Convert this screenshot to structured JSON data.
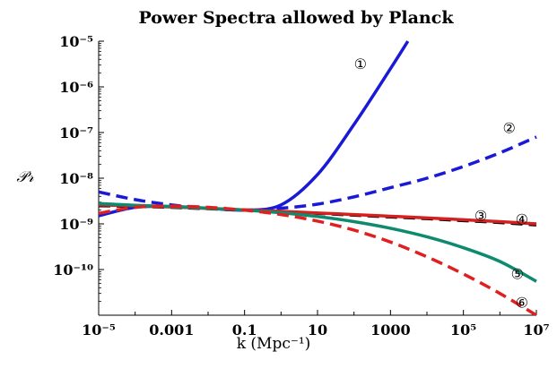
{
  "chart_data": {
    "type": "line",
    "title": "Power Spectra allowed by Planck",
    "xlabel": "k (Mpc⁻¹)",
    "ylabel": "𝒫𝓇",
    "x_scale": "log",
    "y_scale": "log",
    "xlim": [
      1e-05,
      10000000.0
    ],
    "ylim": [
      1e-11,
      1e-05
    ],
    "x_ticks": [
      {
        "value": 1e-05,
        "label": "10⁻⁵"
      },
      {
        "value": 0.001,
        "label": "0.001"
      },
      {
        "value": 0.1,
        "label": "0.1"
      },
      {
        "value": 10,
        "label": "10"
      },
      {
        "value": 1000,
        "label": "1000"
      },
      {
        "value": 100000.0,
        "label": "10⁵"
      },
      {
        "value": 10000000.0,
        "label": "10⁷"
      }
    ],
    "y_ticks": [
      {
        "value": 1e-10,
        "label": "10⁻¹⁰"
      },
      {
        "value": 1e-09,
        "label": "10⁻⁹"
      },
      {
        "value": 1e-08,
        "label": "10⁻⁸"
      },
      {
        "value": 1e-07,
        "label": "10⁻⁷"
      },
      {
        "value": 1e-06,
        "label": "10⁻⁶"
      },
      {
        "value": 1e-05,
        "label": "10⁻⁵"
      }
    ],
    "grid": false,
    "legend": "none",
    "series": [
      {
        "label": "①",
        "color": "#1a1ad6",
        "dash": "solid",
        "x": [
          1e-05,
          0.0001,
          0.001,
          0.01,
          0.1,
          1,
          10,
          100,
          1000,
          3000
        ],
        "y": [
          1.5e-09,
          2.3e-09,
          2.4e-09,
          2.2e-09,
          2e-09,
          2.6e-09,
          1.2e-08,
          1.5e-07,
          2.5e-06,
          1e-05
        ]
      },
      {
        "label": "②",
        "color": "#1a1ad6",
        "dash": "dashed",
        "x": [
          1e-05,
          0.0001,
          0.001,
          0.01,
          0.1,
          1,
          10,
          100,
          1000,
          10000.0,
          100000.0,
          1000000.0,
          10000000.0
        ],
        "y": [
          5e-09,
          3.4e-09,
          2.6e-09,
          2.2e-09,
          2e-09,
          2.2e-09,
          2.7e-09,
          3.9e-09,
          6.2e-09,
          1e-08,
          1.8e-08,
          3.6e-08,
          8e-08
        ]
      },
      {
        "label": "③",
        "color": "#000000",
        "dash": "dashed",
        "x": [
          1e-05,
          0.0001,
          0.001,
          0.01,
          0.1,
          1,
          10,
          100,
          1000,
          10000.0,
          100000.0,
          1000000.0,
          10000000.0
        ],
        "y": [
          2.5e-09,
          2.42e-09,
          2.3e-09,
          2.15e-09,
          2e-09,
          1.85e-09,
          1.7e-09,
          1.55e-09,
          1.42e-09,
          1.3e-09,
          1.18e-09,
          1.07e-09,
          9.5e-10
        ]
      },
      {
        "label": "④",
        "color": "#d42020",
        "dash": "solid",
        "x": [
          1e-05,
          0.0001,
          0.001,
          0.01,
          0.1,
          1,
          10,
          100,
          1000,
          10000.0,
          100000.0,
          1000000.0,
          10000000.0
        ],
        "y": [
          2.6e-09,
          2.5e-09,
          2.35e-09,
          2.18e-09,
          2.02e-09,
          1.88e-09,
          1.73e-09,
          1.6e-09,
          1.47e-09,
          1.35e-09,
          1.23e-09,
          1.12e-09,
          1e-09
        ]
      },
      {
        "label": "⑤",
        "color": "#0e8a6e",
        "dash": "solid",
        "x": [
          1e-05,
          0.0001,
          0.001,
          0.01,
          0.1,
          1,
          10,
          100,
          1000,
          10000.0,
          100000.0,
          1000000.0,
          10000000.0
        ],
        "y": [
          2.8e-09,
          2.55e-09,
          2.4e-09,
          2.2e-09,
          2e-09,
          1.75e-09,
          1.45e-09,
          1.12e-09,
          8e-10,
          5.2e-10,
          3e-10,
          1.5e-10,
          5.5e-11
        ]
      },
      {
        "label": "⑥",
        "color": "#e02020",
        "dash": "dashed",
        "x": [
          1e-05,
          0.0001,
          0.001,
          0.01,
          0.1,
          1,
          10,
          100,
          1000,
          10000.0,
          100000.0,
          1000000.0,
          10000000.0
        ],
        "y": [
          1.7e-09,
          2.3e-09,
          2.45e-09,
          2.3e-09,
          2e-09,
          1.6e-09,
          1.15e-09,
          7.3e-10,
          4e-10,
          1.9e-10,
          8e-11,
          3e-11,
          1e-11
        ]
      }
    ],
    "markers": [
      {
        "text": "①",
        "x": 150,
        "y": 3.4e-06
      },
      {
        "text": "②",
        "x": 1800000.0,
        "y": 1.35e-07
      },
      {
        "text": "③",
        "x": 300000.0,
        "y": 1.6e-09
      },
      {
        "text": "④",
        "x": 4000000.0,
        "y": 1.35e-09
      },
      {
        "text": "⑤",
        "x": 3000000.0,
        "y": 8.5e-11
      },
      {
        "text": "⑥",
        "x": 4000000.0,
        "y": 2e-11
      }
    ]
  }
}
